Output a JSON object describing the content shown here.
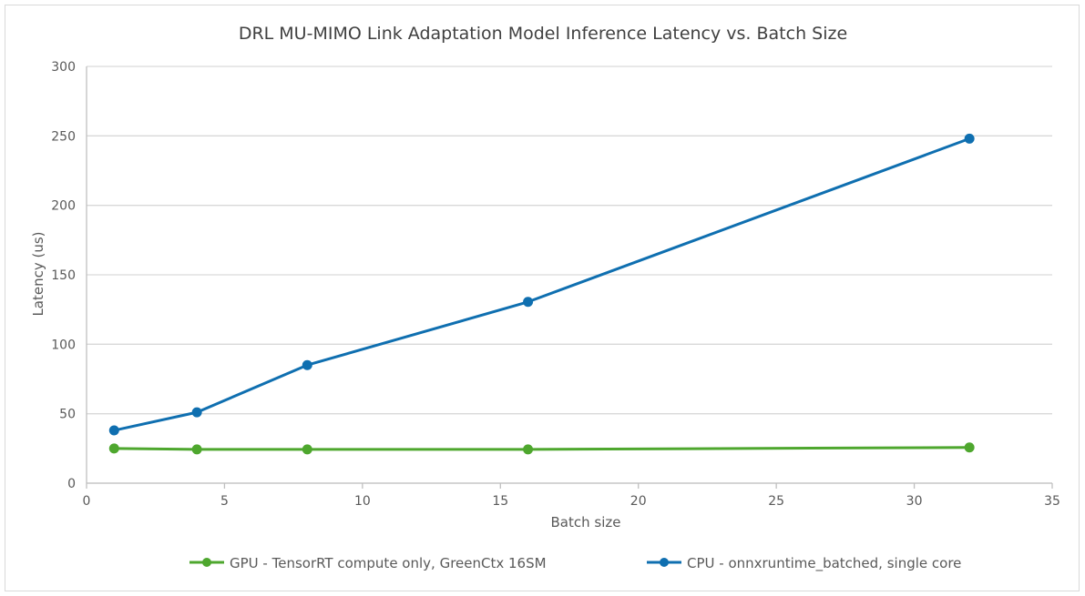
{
  "chart_data": {
    "type": "line",
    "title": "DRL MU-MIMO Link Adaptation Model Inference Latency vs. Batch Size",
    "xlabel": "Batch size",
    "ylabel": "Latency (us)",
    "xlim": [
      0,
      35
    ],
    "ylim": [
      0,
      300
    ],
    "x_ticks": [
      "0",
      "5",
      "10",
      "15",
      "20",
      "25",
      "30",
      "35"
    ],
    "y_ticks": [
      "0",
      "50",
      "100",
      "150",
      "200",
      "250",
      "300"
    ],
    "grid": true,
    "legend_position": "bottom",
    "series": [
      {
        "name": "GPU - TensorRT compute only, GreenCtx 16SM",
        "color": "#4ea72e",
        "x": [
          1,
          4,
          8,
          16,
          32
        ],
        "y": [
          25,
          24.3,
          24.3,
          24.3,
          25.7
        ]
      },
      {
        "name": "CPU - onnxruntime_batched, single core",
        "color": "#0f6fb0",
        "x": [
          1,
          4,
          8,
          16,
          32
        ],
        "y": [
          38,
          51,
          85,
          130.5,
          248
        ]
      }
    ]
  }
}
